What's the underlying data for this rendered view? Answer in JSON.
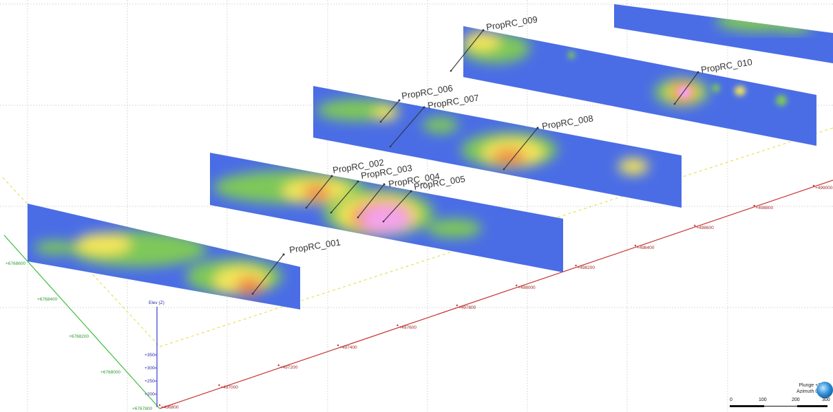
{
  "drillholes": [
    "PropRC_001",
    "PropRC_002",
    "PropRC_003",
    "PropRC_004",
    "PropRC_005",
    "PropRC_006",
    "PropRC_007",
    "PropRC_008",
    "PropRC_009",
    "PropRC_010"
  ],
  "easting_labels": [
    "+496800",
    "+497000",
    "+497200",
    "+497400",
    "+497600",
    "+497800",
    "+498000",
    "+498200",
    "+498400",
    "+498600",
    "+498800",
    "+499000"
  ],
  "northing_labels": [
    "+6767800",
    "+6768000",
    "+6768200",
    "+6768400",
    "+6768600"
  ],
  "elev_axis": {
    "title": "Elev (Z)",
    "ticks": [
      "+350",
      "+300",
      "+250",
      "+200"
    ]
  },
  "compass": {
    "plunge": "Plunge +38",
    "azimuth": "Azimuth 028"
  },
  "scale": {
    "ticks": [
      "0",
      "100",
      "200",
      "300"
    ]
  },
  "colors": {
    "low": "#4a6de6",
    "mid": "#7ec85a",
    "high": "#f4e65a",
    "higher": "#f08a4a",
    "peak": "#f4a3ec",
    "easting_axis": "#c83232",
    "northing_axis": "#3cbc3c"
  }
}
